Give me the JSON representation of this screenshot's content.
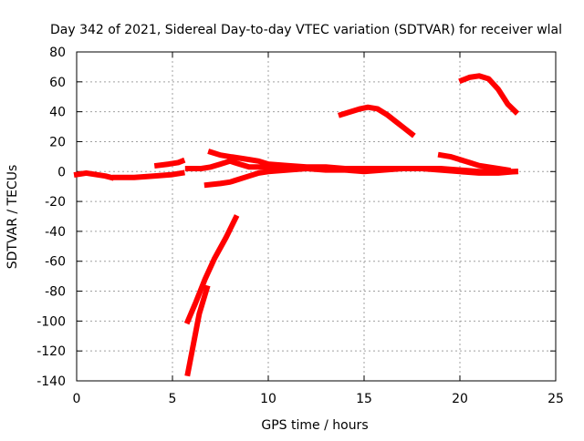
{
  "chart_data": {
    "type": "scatter",
    "title": "Day 342 of 2021, Sidereal Day-to-day VTEC variation (SDTVAR) for receiver wlal",
    "xlabel": "GPS time / hours",
    "ylabel": "SDTVAR / TECUs",
    "xlim": [
      0,
      25
    ],
    "ylim": [
      -140,
      80
    ],
    "xticks": [
      0,
      5,
      10,
      15,
      20,
      25
    ],
    "yticks": [
      -140,
      -120,
      -100,
      -80,
      -60,
      -40,
      -20,
      0,
      20,
      40,
      60,
      80
    ],
    "grid": true,
    "color": "#ff0000",
    "series": [
      {
        "points": [
          [
            0.0,
            -2
          ],
          [
            0.5,
            -1
          ],
          [
            1.0,
            -2
          ],
          [
            1.5,
            -3
          ],
          [
            1.8,
            -4
          ]
        ]
      },
      {
        "points": [
          [
            2.0,
            -4
          ],
          [
            3.0,
            -4
          ],
          [
            4.0,
            -3
          ],
          [
            5.0,
            -2
          ],
          [
            5.5,
            -1
          ]
        ]
      },
      {
        "points": [
          [
            4.2,
            4
          ],
          [
            4.8,
            5
          ],
          [
            5.3,
            6
          ],
          [
            5.5,
            7
          ]
        ]
      },
      {
        "points": [
          [
            5.8,
            -100
          ],
          [
            6.2,
            -88
          ],
          [
            6.7,
            -72
          ],
          [
            7.2,
            -58
          ],
          [
            7.8,
            -44
          ],
          [
            8.3,
            -31
          ]
        ]
      },
      {
        "points": [
          [
            5.8,
            -135
          ],
          [
            6.1,
            -115
          ],
          [
            6.4,
            -95
          ],
          [
            6.8,
            -78
          ]
        ]
      },
      {
        "points": [
          [
            5.8,
            2
          ],
          [
            6.5,
            2
          ],
          [
            7.0,
            3
          ],
          [
            7.5,
            5
          ],
          [
            8.0,
            7
          ],
          [
            8.5,
            5
          ],
          [
            9.0,
            3
          ],
          [
            10,
            3
          ],
          [
            11,
            2
          ],
          [
            12,
            2
          ],
          [
            13,
            1
          ],
          [
            14,
            1
          ],
          [
            15,
            0
          ],
          [
            16,
            1
          ],
          [
            17,
            2
          ],
          [
            18,
            2
          ],
          [
            19,
            1
          ],
          [
            20,
            0
          ],
          [
            21,
            -1
          ],
          [
            22,
            -1
          ],
          [
            22.9,
            0
          ]
        ]
      },
      {
        "points": [
          [
            7.0,
            13
          ],
          [
            7.5,
            11
          ],
          [
            8.0,
            10
          ],
          [
            8.5,
            9
          ],
          [
            9.0,
            8
          ],
          [
            9.5,
            7
          ],
          [
            10,
            5
          ],
          [
            11,
            4
          ],
          [
            12,
            3
          ],
          [
            13,
            3
          ],
          [
            14,
            2
          ],
          [
            15,
            2
          ],
          [
            16,
            2
          ],
          [
            17,
            2
          ],
          [
            18,
            2
          ],
          [
            19,
            2
          ],
          [
            20,
            1
          ],
          [
            21,
            0
          ],
          [
            22,
            0
          ],
          [
            22.9,
            0
          ]
        ]
      },
      {
        "points": [
          [
            6.8,
            -9
          ],
          [
            7.5,
            -8
          ],
          [
            8.0,
            -7
          ],
          [
            8.5,
            -5
          ],
          [
            9.0,
            -3
          ],
          [
            9.5,
            -1
          ],
          [
            10,
            0
          ],
          [
            11,
            1
          ],
          [
            12,
            2
          ],
          [
            13,
            2
          ],
          [
            14,
            2
          ]
        ]
      },
      {
        "points": [
          [
            13.8,
            38
          ],
          [
            14.3,
            40
          ],
          [
            14.8,
            42
          ],
          [
            15.2,
            43
          ],
          [
            15.7,
            42
          ],
          [
            16.2,
            38
          ],
          [
            16.7,
            33
          ],
          [
            17.1,
            29
          ],
          [
            17.5,
            25
          ]
        ]
      },
      {
        "points": [
          [
            19.0,
            11
          ],
          [
            19.5,
            10
          ],
          [
            20,
            8
          ],
          [
            20.5,
            6
          ],
          [
            21,
            4
          ],
          [
            21.5,
            3
          ],
          [
            22,
            2
          ],
          [
            22.5,
            1
          ]
        ]
      },
      {
        "points": [
          [
            20.1,
            61
          ],
          [
            20.5,
            63
          ],
          [
            21.0,
            64
          ],
          [
            21.5,
            62
          ],
          [
            22.0,
            55
          ],
          [
            22.5,
            45
          ],
          [
            22.9,
            40
          ]
        ]
      }
    ]
  }
}
